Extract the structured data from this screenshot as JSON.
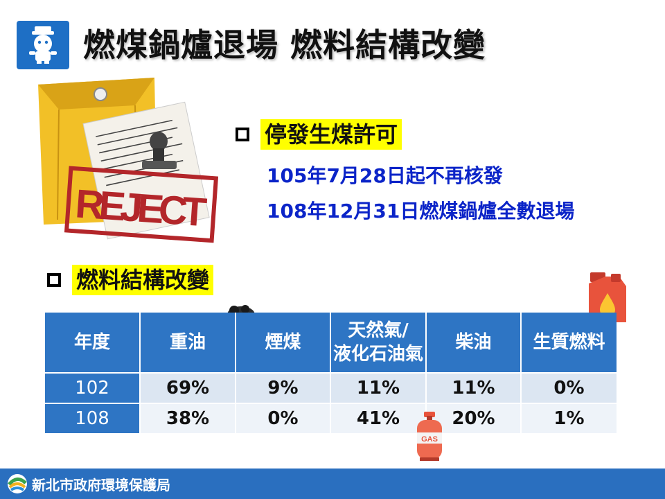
{
  "header": {
    "title": "燃煤鍋爐退場 燃料結構改變"
  },
  "illustration": {
    "stamp_text": "REJECT"
  },
  "section1": {
    "heading": "停發生煤許可",
    "lines": [
      "105年7月28日起不再核發",
      "108年12月31日燃煤鍋爐全數退場"
    ]
  },
  "section2": {
    "heading": "燃料結構改變"
  },
  "table": {
    "headers": [
      "年度",
      "重油",
      "煙煤",
      "天然氣/\n液化石油氣",
      "柴油",
      "生質燃料"
    ],
    "rows": [
      [
        "102",
        "69%",
        "9%",
        "11%",
        "11%",
        "0%"
      ],
      [
        "108",
        "38%",
        "0%",
        "41%",
        "20%",
        "1%"
      ]
    ]
  },
  "icons": {
    "gas_cylinder_label": "GAS"
  },
  "footer": {
    "org": "新北市政府環境保護局"
  },
  "colors": {
    "primary_blue": "#2e75c4",
    "subline_blue": "#0b24c8",
    "highlight_yellow": "#ffff00",
    "footer_blue": "#2a6fbf"
  }
}
